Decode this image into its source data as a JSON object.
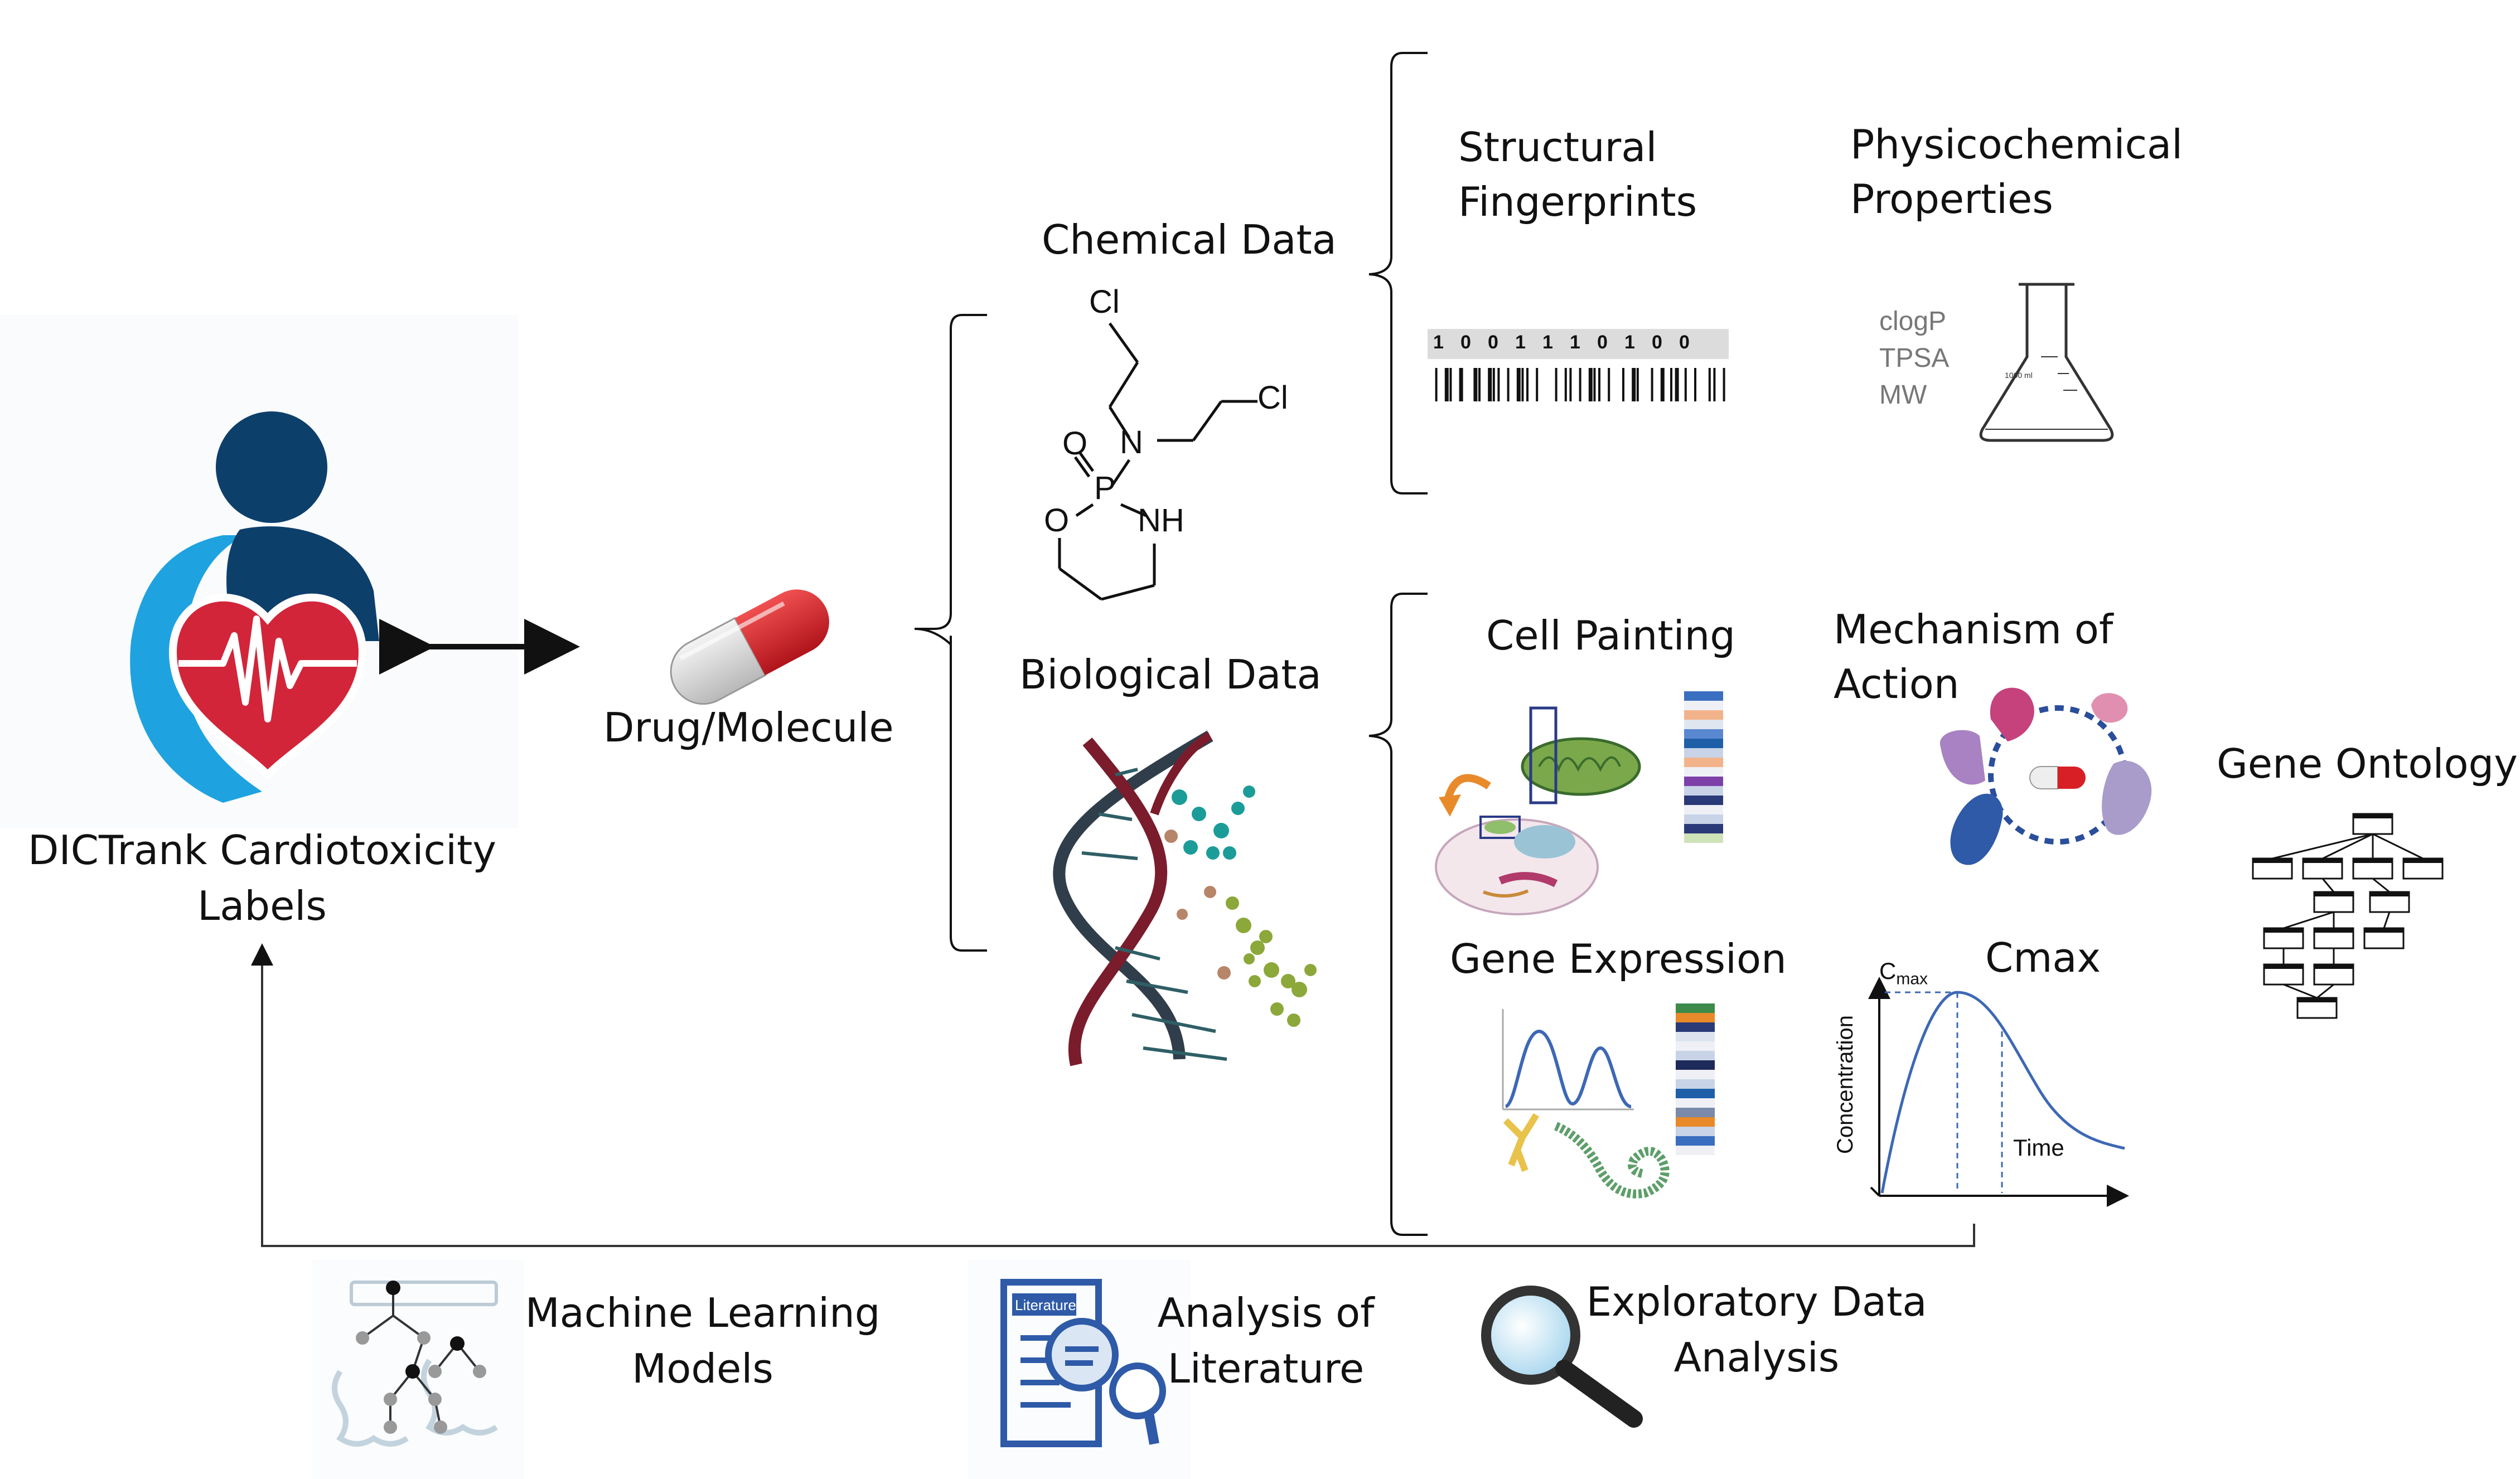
{
  "labels": {
    "dictrank_line1": "DICTrank Cardiotoxicity",
    "dictrank_line2": "Labels",
    "drug": "Drug/Molecule",
    "chemical": "Chemical Data",
    "biological": "Biological Data",
    "structural_line1": "Structural",
    "structural_line2": "Fingerprints",
    "physico_line1": "Physicochemical",
    "physico_line2": "Properties",
    "cell_painting": "Cell Painting",
    "moa_line1": "Mechanism of",
    "moa_line2": "Action",
    "gene_ontology": "Gene Ontology",
    "gene_expression": "Gene Expression",
    "cmax": "Cmax",
    "ml_line1": "Machine Learning",
    "ml_line2": "Models",
    "lit_line1": "Analysis of",
    "lit_line2": "Literature",
    "eda_line1": "Exploratory Data",
    "eda_line2": "Analysis"
  },
  "fingerprint": {
    "bits": [
      "1",
      "0",
      "0",
      "1",
      "1",
      "1",
      "0",
      "1",
      "0",
      "0"
    ]
  },
  "properties": [
    "clogP",
    "TPSA",
    "MW"
  ],
  "molecule": {
    "atoms": [
      "Cl",
      "N",
      "Cl",
      "O",
      "P",
      "O",
      "NH"
    ]
  },
  "cmax_plot": {
    "peak_label": "C",
    "peak_sub": "max",
    "ylabel": "Concentration",
    "xlabel": "Time"
  },
  "flask_label": "1000 ml",
  "literature_icon_label": "Literature",
  "colors": {
    "heart_red": "#d2253a",
    "person_dark": "#0d3f6b",
    "person_light": "#1ea3e0",
    "pill_red": "#d81f26",
    "dna_dark": "#2f3e4a",
    "dna_red": "#7a1c2b",
    "curve_blue": "#3d68b4"
  }
}
